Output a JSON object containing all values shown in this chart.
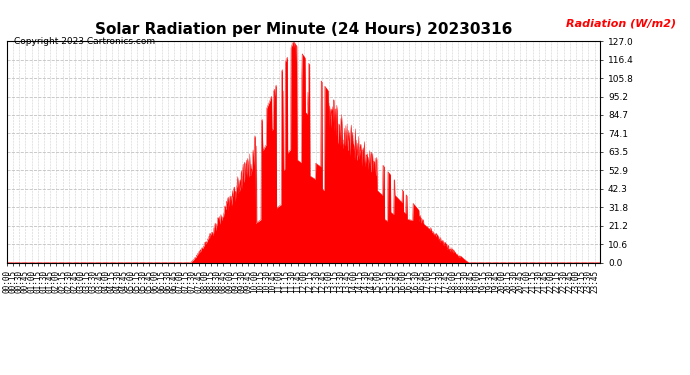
{
  "title": "Solar Radiation per Minute (24 Hours) 20230316",
  "ylabel": "Radiation (W/m2)",
  "copyright_text": "Copyright 2023 Cartronics.com",
  "fill_color": "#ff0000",
  "line_color": "#ff0000",
  "background_color": "#ffffff",
  "grid_color": "#bbbbbb",
  "zero_line_color": "#ff0000",
  "ylabel_color": "#ff0000",
  "title_color": "#000000",
  "ylim": [
    0.0,
    127.0
  ],
  "yticks": [
    0.0,
    10.6,
    21.2,
    31.8,
    42.3,
    52.9,
    63.5,
    74.1,
    84.7,
    95.2,
    105.8,
    116.4,
    127.0
  ],
  "title_fontsize": 11,
  "tick_fontsize": 5.5,
  "ylabel_fontsize": 8,
  "copyright_fontsize": 6.5
}
